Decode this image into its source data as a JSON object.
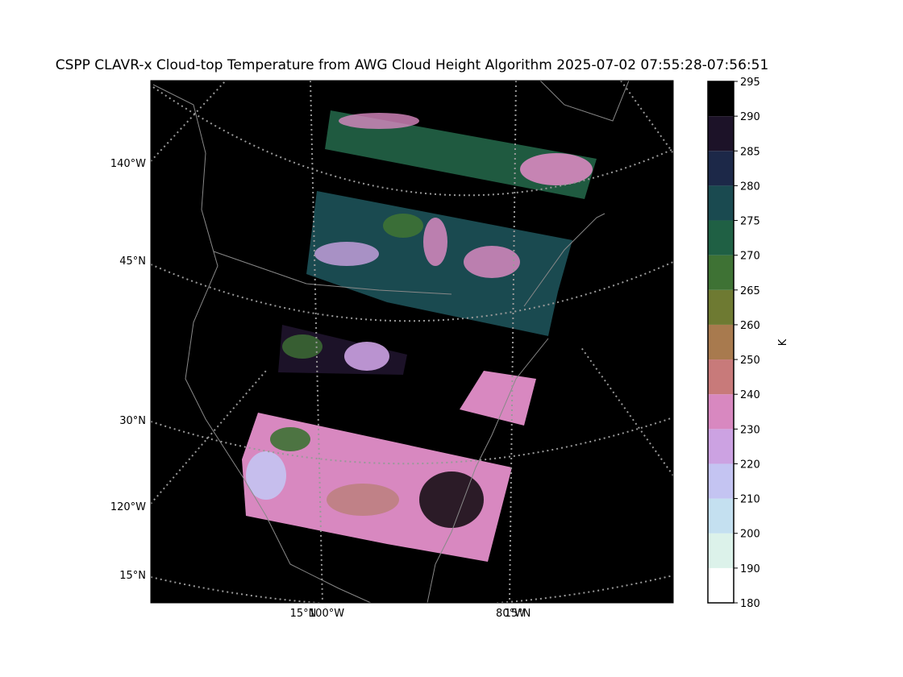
{
  "title": "CSPP CLAVR-x Cloud-top Temperature from AWG Cloud Height Algorithm 2025-07-02 07:55:28-07:56:51",
  "map": {
    "labels_left": [
      "140°W",
      "45°N",
      "30°N",
      "120°W",
      "15°N"
    ],
    "labels_bottom": [
      "15°N",
      "100°W",
      "80°W",
      "15°N"
    ]
  },
  "colorbar": {
    "label": "K",
    "boundaries": [
      180,
      190,
      200,
      210,
      220,
      230,
      240,
      250,
      260,
      265,
      270,
      275,
      280,
      285,
      290,
      295
    ],
    "colors": [
      "#ffffff",
      "#dcf2ea",
      "#c4e0f0",
      "#c4c4f2",
      "#cca2e2",
      "#d888c0",
      "#c87a7a",
      "#a87a4e",
      "#6e7a32",
      "#3e7234",
      "#1f6044",
      "#1a4a50",
      "#1c2848",
      "#1c1228",
      "#000000"
    ]
  }
}
